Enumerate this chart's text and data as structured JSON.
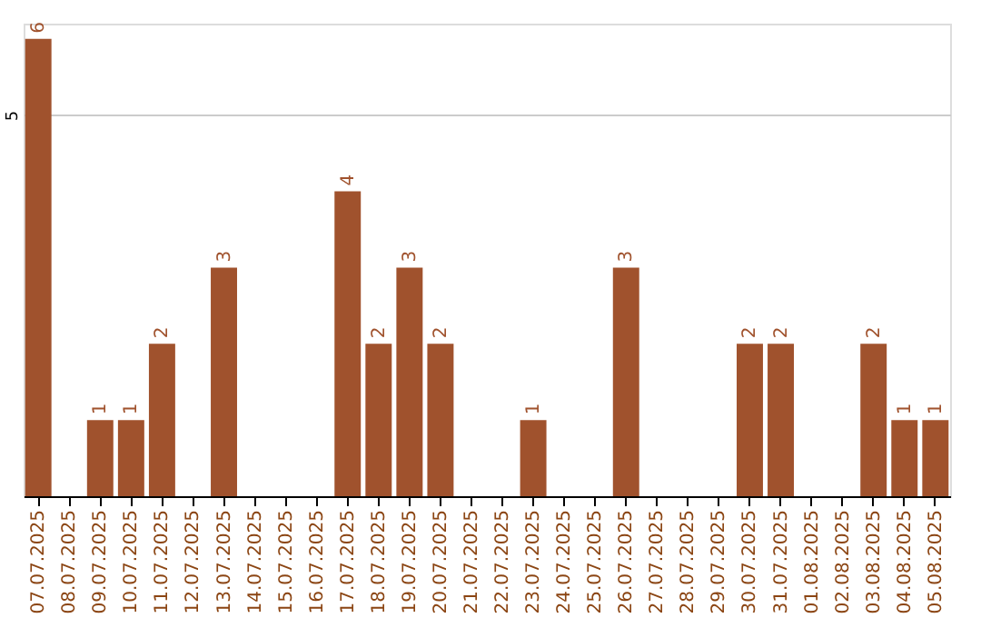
{
  "chart_data": {
    "type": "bar",
    "categories": [
      "07.07.2025",
      "08.07.2025",
      "09.07.2025",
      "10.07.2025",
      "11.07.2025",
      "12.07.2025",
      "13.07.2025",
      "14.07.2025",
      "15.07.2025",
      "16.07.2025",
      "17.07.2025",
      "18.07.2025",
      "19.07.2025",
      "20.07.2025",
      "21.07.2025",
      "22.07.2025",
      "23.07.2025",
      "24.07.2025",
      "25.07.2025",
      "26.07.2025",
      "27.07.2025",
      "28.07.2025",
      "29.07.2025",
      "30.07.2025",
      "31.07.2025",
      "01.08.2025",
      "02.08.2025",
      "03.08.2025",
      "04.08.2025",
      "05.08.2025"
    ],
    "values": [
      6,
      0,
      1,
      1,
      2,
      0,
      3,
      0,
      0,
      0,
      4,
      2,
      3,
      2,
      0,
      0,
      1,
      0,
      0,
      3,
      0,
      0,
      0,
      2,
      2,
      0,
      0,
      2,
      1,
      1
    ],
    "value_labels": [
      "6",
      null,
      "1",
      "1",
      "2",
      null,
      "3",
      null,
      null,
      null,
      "4",
      "2",
      "3",
      "2",
      null,
      null,
      "1",
      null,
      null,
      "3",
      null,
      null,
      null,
      "2",
      "2",
      null,
      null,
      "2",
      "1",
      "1"
    ],
    "color": "#a0522d",
    "ylim": [
      0,
      6.2
    ],
    "yticks": [
      5
    ],
    "grid": "y"
  }
}
